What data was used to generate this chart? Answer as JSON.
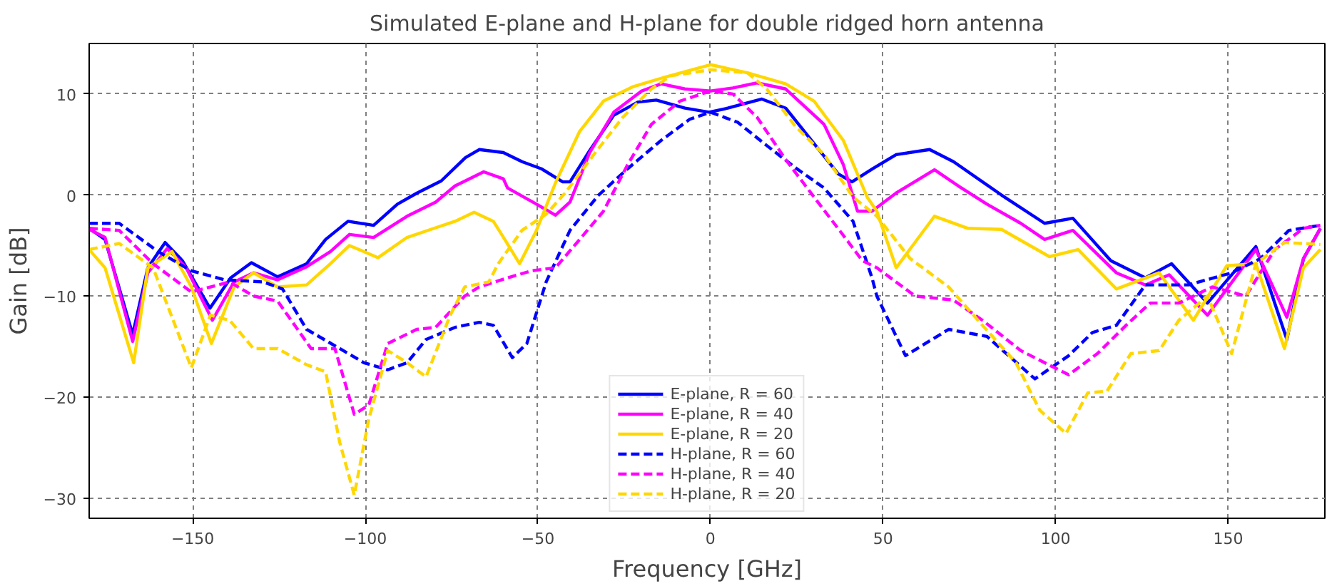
{
  "chart_data": {
    "type": "line",
    "title": "Simulated E-plane and H-plane for double ridged horn antenna",
    "xlabel": "Frequency [GHz]",
    "ylabel": "Gain [dB]",
    "xlim": [
      -180,
      178
    ],
    "ylim": [
      -32,
      15
    ],
    "xticks": [
      {
        "value": -150,
        "label": "−150"
      },
      {
        "value": -100,
        "label": "−100"
      },
      {
        "value": -50,
        "label": "−50"
      },
      0,
      50,
      100,
      150
    ],
    "yticks": [
      {
        "value": -30,
        "label": "−30"
      },
      {
        "value": -20,
        "label": "−20"
      },
      {
        "value": -10,
        "label": "−10"
      },
      0,
      10
    ],
    "grid": true,
    "legend": "bottom",
    "marker": "none",
    "series": [
      {
        "name": "E-plane, R = 60",
        "color": "#0000ff",
        "line_style": "solid",
        "x": [
          -180,
          -175.4,
          -167.4,
          -163,
          -158,
          -153,
          -145,
          -139,
          -133,
          -125.4,
          -117,
          -111.5,
          -105,
          -97.6,
          -90.7,
          -85,
          -78,
          -71,
          -67,
          -60,
          -54.6,
          -49,
          -42.8,
          -40.7,
          -35,
          -28,
          -21,
          -15.7,
          -7.4,
          -0.4,
          5,
          14.9,
          21.8,
          30,
          37,
          41,
          47,
          53.8,
          63.5,
          70.4,
          84.3,
          96.8,
          105,
          116,
          126,
          133.6,
          144,
          158,
          167,
          171.8,
          176.7
        ],
        "values": [
          -3.3,
          -4.4,
          -13.8,
          -7.2,
          -4.7,
          -6.5,
          -11.2,
          -8.2,
          -6.7,
          -8.1,
          -6.8,
          -4.4,
          -2.6,
          -3.0,
          -0.9,
          0.2,
          1.4,
          3.7,
          4.5,
          4.2,
          3.3,
          2.6,
          1.3,
          1.3,
          4.4,
          7.9,
          9.2,
          9.4,
          8.6,
          8.2,
          8.6,
          9.5,
          8.6,
          5.1,
          2.1,
          1.3,
          2.6,
          4.0,
          4.5,
          3.3,
          0,
          -2.8,
          -2.3,
          -6.5,
          -8.2,
          -6.8,
          -10.7,
          -5.1,
          -14.3,
          -6.3,
          -3.3
        ]
      },
      {
        "name": "E-plane, R = 40",
        "color": "#ff00ff",
        "line_style": "solid",
        "x": [
          -180,
          -175.4,
          -167.4,
          -163,
          -157.4,
          -151.9,
          -144.3,
          -138,
          -132.4,
          -125.4,
          -117,
          -110.1,
          -104.6,
          -97.6,
          -87.9,
          -79.6,
          -74,
          -65.7,
          -60,
          -58.8,
          -50.4,
          -44.9,
          -40.7,
          -35,
          -28,
          -19.9,
          -14.3,
          -7.4,
          0,
          6.5,
          13.5,
          21.8,
          32.9,
          38.5,
          42.6,
          46.8,
          53.8,
          64.9,
          71.8,
          80.1,
          89.9,
          96.8,
          105,
          117.6,
          126,
          132.9,
          144,
          158,
          167,
          171.8,
          176.7
        ],
        "values": [
          -3.4,
          -4.2,
          -14.5,
          -7.7,
          -5.3,
          -7.2,
          -12.4,
          -8.6,
          -7.7,
          -8.4,
          -7.1,
          -5.6,
          -3.9,
          -4.2,
          -2.1,
          -0.7,
          0.9,
          2.3,
          1.6,
          0.7,
          -0.9,
          -2.0,
          -0.7,
          4.2,
          8.2,
          10.3,
          11.0,
          10.5,
          10.3,
          10.6,
          11.1,
          10.5,
          7.0,
          3.0,
          -1.6,
          -1.6,
          0.2,
          2.5,
          0.9,
          -0.9,
          -2.8,
          -4.4,
          -3.5,
          -7.7,
          -8.9,
          -7.9,
          -11.9,
          -5.4,
          -12.1,
          -6.3,
          -3.3
        ]
      },
      {
        "name": "E-plane, R = 20",
        "color": "#ffd700",
        "line_style": "solid",
        "x": [
          -180,
          -175.4,
          -167.1,
          -163,
          -156,
          -150.4,
          -144.6,
          -138,
          -132.4,
          -125.4,
          -117,
          -110.1,
          -104.6,
          -96.3,
          -87.9,
          -81,
          -74,
          -68.5,
          -62.9,
          -59.6,
          -55.3,
          -50.4,
          -44.9,
          -37.9,
          -31,
          -22.6,
          -12.9,
          0,
          10.7,
          21.8,
          30,
          38.5,
          45.4,
          48.2,
          53.8,
          64.9,
          74.6,
          84.3,
          98.2,
          106.5,
          117.6,
          130,
          139.9,
          149.6,
          158,
          166.3,
          171.8,
          176.7
        ],
        "values": [
          -5.4,
          -7.2,
          -16.6,
          -7.2,
          -5.6,
          -9.1,
          -14.7,
          -9.1,
          -7.7,
          -9.1,
          -8.9,
          -6.8,
          -5.0,
          -6.2,
          -4.2,
          -3.4,
          -2.6,
          -1.7,
          -2.6,
          -4.4,
          -6.8,
          -3.5,
          1.2,
          6.3,
          9.3,
          10.7,
          11.7,
          12.9,
          12.1,
          11.0,
          9.3,
          5.4,
          -0.2,
          -1.6,
          -7.2,
          -2.1,
          -3.3,
          -3.4,
          -6.1,
          -5.4,
          -9.3,
          -7.7,
          -12.4,
          -7.0,
          -6.8,
          -15.2,
          -7.2,
          -5.4
        ]
      },
      {
        "name": "H-plane, R = 60",
        "color": "#0000ff",
        "line_style": "dashed",
        "x": [
          -180,
          -171.3,
          -160,
          -150.4,
          -140.7,
          -129.6,
          -124,
          -117,
          -107.4,
          -100.4,
          -93.5,
          -87.9,
          -82.4,
          -74,
          -67,
          -62.9,
          -57.4,
          -53.2,
          -47.6,
          -40.7,
          -32.4,
          -24,
          -14.3,
          -6,
          0,
          7.9,
          16.3,
          24.6,
          32.9,
          41.3,
          46.8,
          48.2,
          56.5,
          69,
          80.1,
          94,
          103.8,
          110.7,
          117.6,
          126,
          138.5,
          151,
          159.3,
          167.6,
          176.7
        ],
        "values": [
          -2.8,
          -2.8,
          -5.6,
          -7.5,
          -8.4,
          -8.6,
          -9.3,
          -13.3,
          -15.2,
          -16.6,
          -17.3,
          -16.6,
          -14.3,
          -13.1,
          -12.6,
          -12.9,
          -16.1,
          -14.7,
          -8.6,
          -3.5,
          0,
          2.6,
          5.4,
          7.5,
          8.2,
          7.2,
          4.9,
          2.7,
          0.7,
          -2.6,
          -8.2,
          -10.0,
          -15.9,
          -13.3,
          -14.0,
          -18.2,
          -15.9,
          -13.6,
          -12.9,
          -8.9,
          -8.9,
          -7.7,
          -6.3,
          -3.5,
          -3.0
        ]
      },
      {
        "name": "H-plane, R = 40",
        "color": "#ff00ff",
        "line_style": "dashed",
        "x": [
          -180,
          -171.3,
          -161.5,
          -150.4,
          -139.3,
          -132.4,
          -125.4,
          -115.7,
          -108.8,
          -103.2,
          -99,
          -93.5,
          -85.1,
          -79.6,
          -71.2,
          -67,
          -58.8,
          -51.8,
          -44.9,
          -37.9,
          -31,
          -24,
          -17.1,
          -8.8,
          0,
          6.5,
          13.5,
          21.8,
          30,
          38.5,
          44,
          48.2,
          59.3,
          70.4,
          78.8,
          89.9,
          96.8,
          103.8,
          112.1,
          120.4,
          127.4,
          135.7,
          145.4,
          155.1,
          163.5,
          171.8,
          176.7
        ],
        "values": [
          -3.3,
          -3.5,
          -6.8,
          -9.6,
          -8.6,
          -10.0,
          -10.5,
          -15.2,
          -15.2,
          -21.7,
          -20.8,
          -14.7,
          -13.3,
          -13.1,
          -10.0,
          -9.1,
          -8.2,
          -7.5,
          -7.2,
          -4.4,
          -1.6,
          3.0,
          7.0,
          9.3,
          10.3,
          10.0,
          7.7,
          3.5,
          -0.2,
          -4.0,
          -6.5,
          -7.2,
          -10.0,
          -10.4,
          -12.4,
          -15.4,
          -16.6,
          -17.8,
          -15.7,
          -12.9,
          -10.7,
          -10.7,
          -9.1,
          -10.0,
          -5.4,
          -3.3,
          -3.0
        ]
      },
      {
        "name": "H-plane, R = 20",
        "color": "#ffd700",
        "line_style": "dashed",
        "x": [
          -180,
          -171.3,
          -161.5,
          -150.4,
          -144.9,
          -139.3,
          -132.4,
          -125.4,
          -117,
          -111.5,
          -107.4,
          -103.2,
          -99,
          -93.5,
          -87.9,
          -82.4,
          -75.4,
          -71.2,
          -64.2,
          -61.5,
          -54.6,
          -47.6,
          -42.1,
          -33.8,
          -25.4,
          -17.1,
          -11.5,
          0,
          10.7,
          16.3,
          24.6,
          32.9,
          41.3,
          48.2,
          57.9,
          69,
          78.8,
          88.5,
          95.4,
          103,
          109.3,
          114.9,
          121.8,
          130,
          135.7,
          144,
          151,
          158,
          166.3,
          176.7
        ],
        "values": [
          -5.4,
          -4.8,
          -7.2,
          -17.1,
          -11.9,
          -12.4,
          -15.2,
          -15.2,
          -16.8,
          -17.5,
          -24.5,
          -29.7,
          -22.2,
          -15.4,
          -16.6,
          -18.0,
          -11.9,
          -9.1,
          -8.6,
          -6.8,
          -3.5,
          -1.9,
          0.2,
          4.0,
          7.7,
          10.5,
          11.8,
          12.4,
          12.1,
          10.5,
          6.8,
          4.0,
          -0.2,
          -2.1,
          -6.3,
          -9.1,
          -12.9,
          -16.6,
          -21.3,
          -23.6,
          -19.6,
          -19.4,
          -15.7,
          -15.4,
          -12.4,
          -10.0,
          -15.7,
          -6.8,
          -4.7,
          -4.9
        ]
      }
    ]
  }
}
